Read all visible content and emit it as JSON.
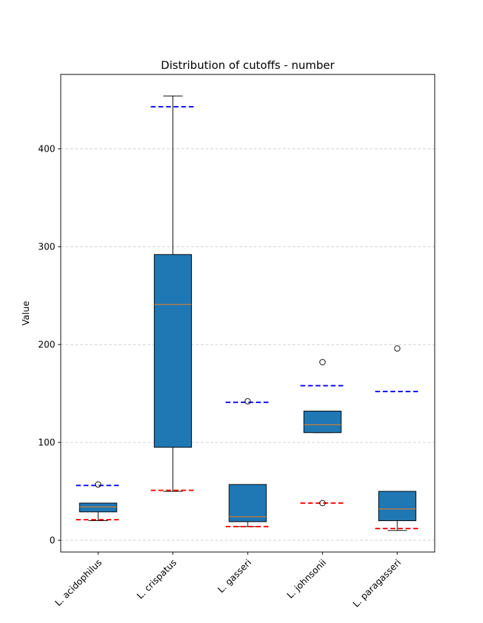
{
  "chart_data": {
    "type": "box",
    "title": "Distribution of cutoffs - number",
    "xlabel": "",
    "ylabel": "Value",
    "ylim": [
      -12,
      476
    ],
    "yticks": [
      0,
      100,
      200,
      300,
      400
    ],
    "grid": "horizontal dashed",
    "categories": [
      "L. acidophilus",
      "L. crispatus",
      "L. gasseri",
      "L. johnsonii",
      "L. paragasseri"
    ],
    "box_color": "#1f77b4",
    "median_color": "#ff7f0e",
    "upper_line_color": "#0000ff",
    "lower_line_color": "#ff0000",
    "boxes": [
      {
        "whislo": 20,
        "q1": 29,
        "med": 34,
        "q3": 38,
        "whishi": 38,
        "fliers": [
          57
        ],
        "upper_line": 56,
        "lower_line": 21
      },
      {
        "whislo": 50,
        "q1": 95,
        "med": 241,
        "q3": 292,
        "whishi": 454,
        "fliers": [],
        "upper_line": 443,
        "lower_line": 51
      },
      {
        "whislo": 14,
        "q1": 19,
        "med": 24,
        "q3": 57,
        "whishi": 57,
        "fliers": [
          142
        ],
        "upper_line": 141,
        "lower_line": 14
      },
      {
        "whislo": 110,
        "q1": 110,
        "med": 118,
        "q3": 132,
        "whishi": 132,
        "fliers": [
          182,
          38
        ],
        "upper_line": 158,
        "lower_line": 38
      },
      {
        "whislo": 10,
        "q1": 20,
        "med": 32,
        "q3": 50,
        "whishi": 50,
        "fliers": [
          196
        ],
        "upper_line": 152,
        "lower_line": 12
      }
    ]
  }
}
